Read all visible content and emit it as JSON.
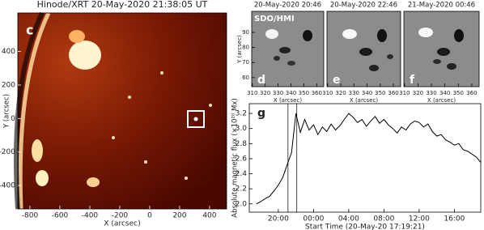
{
  "chart_data": [
    {
      "type": "image",
      "label": "c",
      "title": "Hinode/XRT 20-May-2020 21:38:05 UT",
      "xlabel": "X (arcsec)",
      "ylabel": "Y (arcsec)",
      "xlim": [
        -881,
        514
      ],
      "ylim": [
        -540,
        630
      ],
      "xticks": [
        -800,
        -600,
        -400,
        -200,
        0,
        200,
        400
      ],
      "yticks": [
        -400,
        -200,
        0,
        200,
        400
      ]
    },
    {
      "type": "image",
      "label": "d",
      "title": "20-May-2020 20:46",
      "annotation": "SDO/HMI",
      "xlabel": "X (arcsec)",
      "ylabel": "Y (arcsec)",
      "xlim": [
        309.5,
        365.5
      ],
      "ylim": [
        54,
        104
      ],
      "xticks": [
        310,
        320,
        330,
        340,
        350,
        360
      ],
      "yticks": [
        60,
        70,
        80,
        90
      ]
    },
    {
      "type": "image",
      "label": "e",
      "title": "20-May-2020 22:46",
      "xlabel": "X (arcsec)",
      "xlim": [
        309.5,
        365.5
      ],
      "ylim": [
        54,
        104
      ],
      "xticks": [
        310,
        320,
        330,
        340,
        350,
        360
      ]
    },
    {
      "type": "image",
      "label": "f",
      "title": "21-May-2020 00:46",
      "xlabel": "X (arcsec)",
      "xlim": [
        309.5,
        365.5
      ],
      "ylim": [
        54,
        104
      ],
      "xticks": [
        310,
        320,
        330,
        340,
        350,
        360
      ]
    },
    {
      "type": "line",
      "label": "g",
      "xlabel": "Start Time (20-May-20 17:19:21)",
      "ylabel": "Absolute magnetic flux (×10²⁰ Mx)",
      "xlim": [
        16.7,
        43.0
      ],
      "ylim": [
        1.89,
        3.33
      ],
      "xticks": [
        {
          "value": 20,
          "label": "20:00"
        },
        {
          "value": 24,
          "label": "00:00"
        },
        {
          "value": 28,
          "label": "04:00"
        },
        {
          "value": 32,
          "label": "08:00"
        },
        {
          "value": 36,
          "label": "12:00"
        },
        {
          "value": 40,
          "label": "16:00"
        }
      ],
      "yticks": [
        {
          "value": 2,
          "label": "2.0"
        },
        2.2,
        2.4,
        2.6,
        2.8,
        {
          "value": 3,
          "label": "3.0"
        },
        3.2
      ],
      "vlines": [
        21.1,
        22.1
      ],
      "color": "#000000",
      "x": [
        17.5,
        18,
        18.5,
        19,
        19.5,
        20,
        20.5,
        21,
        21.5,
        22,
        22.5,
        23,
        23.5,
        24,
        24.5,
        25,
        25.5,
        26,
        26.5,
        27,
        27.5,
        28,
        28.5,
        29,
        29.5,
        30,
        30.5,
        31,
        31.5,
        32,
        32.5,
        33,
        33.5,
        34,
        34.5,
        35,
        35.5,
        36,
        36.5,
        37,
        37.5,
        38,
        38.5,
        39,
        39.5,
        40,
        40.5,
        41,
        41.5,
        42,
        42.5,
        43
      ],
      "values": [
        2.0,
        2.03,
        2.07,
        2.1,
        2.17,
        2.25,
        2.35,
        2.52,
        2.68,
        3.2,
        2.95,
        3.12,
        2.98,
        3.05,
        2.92,
        3.02,
        2.96,
        3.06,
        2.98,
        3.04,
        3.12,
        3.2,
        3.15,
        3.08,
        3.12,
        3.03,
        3.1,
        3.16,
        3.07,
        3.12,
        3.05,
        3.0,
        2.94,
        3.02,
        2.98,
        3.06,
        3.1,
        3.08,
        3.02,
        3.06,
        2.96,
        2.9,
        2.92,
        2.85,
        2.82,
        2.78,
        2.8,
        2.72,
        2.7,
        2.66,
        2.62,
        2.55
      ]
    }
  ]
}
